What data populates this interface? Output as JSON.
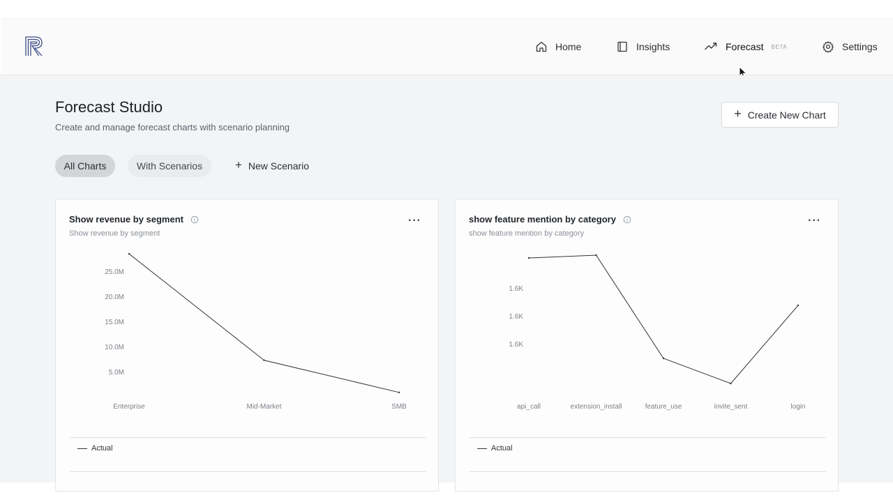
{
  "nav": {
    "items": [
      {
        "label": "Home",
        "icon": "home-icon"
      },
      {
        "label": "Insights",
        "icon": "book-icon"
      },
      {
        "label": "Forecast",
        "icon": "trend-up-icon",
        "badge": "BETA"
      },
      {
        "label": "Settings",
        "icon": "gear-icon"
      }
    ]
  },
  "page": {
    "title": "Forecast Studio",
    "subtitle": "Create and manage forecast charts with scenario planning",
    "create_button": "Create New Chart"
  },
  "filters": {
    "all": "All Charts",
    "with_scenarios": "With Scenarios",
    "new_scenario": "New Scenario"
  },
  "cards": [
    {
      "title": "Show revenue by segment",
      "subtitle": "Show revenue by segment",
      "legend": "Actual"
    },
    {
      "title": "show feature mention by category",
      "subtitle": "show feature mention by category",
      "legend": "Actual"
    }
  ],
  "chart_data": [
    {
      "type": "line",
      "categories": [
        "Enterprise",
        "Mid-Market",
        "SMB"
      ],
      "series": [
        {
          "name": "Actual",
          "values": [
            28600000,
            7400000,
            1000000
          ]
        }
      ],
      "yticks": [
        "25.0M",
        "20.0M",
        "15.0M",
        "10.0M",
        "5.0M"
      ],
      "ytick_values": [
        25000000,
        20000000,
        15000000,
        10000000,
        5000000
      ],
      "ylim": [
        0,
        30000000
      ],
      "grid": false,
      "legend_position": "bottom-left",
      "line_color": "#333333"
    },
    {
      "type": "line",
      "categories": [
        "api_call",
        "extension_install",
        "feature_use",
        "invite_sent",
        "login"
      ],
      "series": [
        {
          "name": "Actual",
          "values": [
            1646,
            1647,
            1610,
            1601,
            1629
          ]
        }
      ],
      "yticks": [
        "1.6K",
        "1.6K",
        "1.6K"
      ],
      "ytick_values": [
        1635,
        1625,
        1615
      ],
      "ylim": [
        1596,
        1650
      ],
      "grid": false,
      "legend_position": "bottom-left",
      "line_color": "#333333"
    }
  ]
}
